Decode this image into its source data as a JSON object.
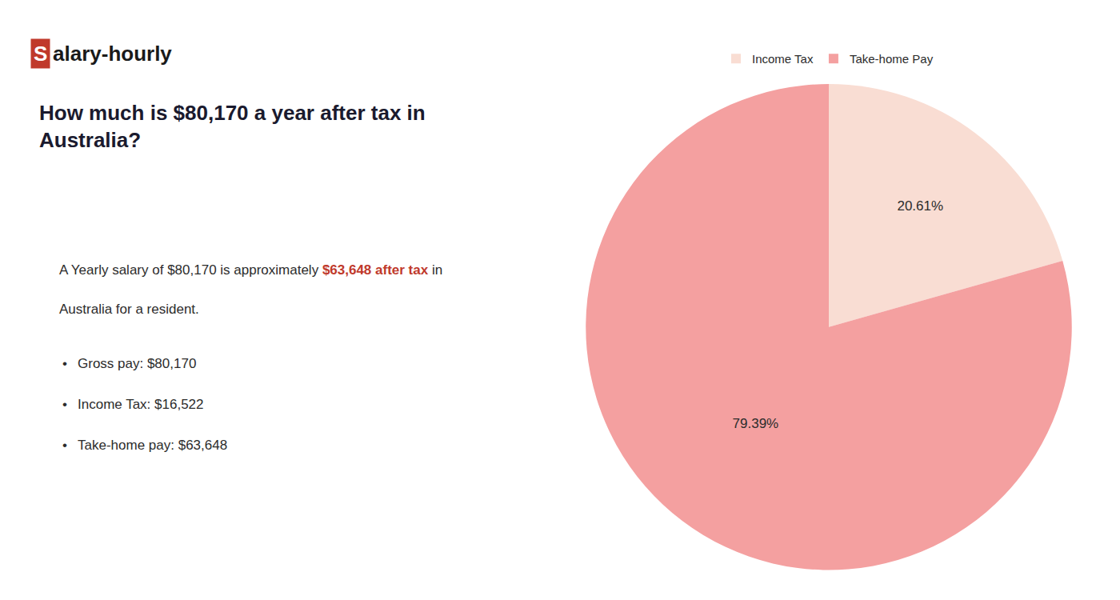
{
  "chart_data": {
    "type": "pie",
    "title": "How much is $80,170 a year after tax in\nAustralia?",
    "categories": [
      "Income Tax",
      "Take-home Pay"
    ],
    "values": [
      20.61,
      79.39
    ],
    "value_labels": [
      "20.61%",
      "79.39%"
    ],
    "colors": [
      "#f9ddd3",
      "#f4a0a0"
    ],
    "data_labels": true,
    "legend": "top",
    "annotations": [
      [
        {
          "text": "S",
          "color": "#c0392b"
        },
        "alary-hourly"
      ],
      [
        "A Yearly salary of $80,170 is approximately ",
        {
          "text": "$63,648 after tax",
          "color": "#c0392b"
        },
        " in"
      ],
      [
        "Australia for a resident."
      ],
      [
        "•",
        "Gross pay: $80,170"
      ],
      [
        "•",
        "Income Tax: $16,522"
      ],
      [
        "•",
        "Take-home pay: $63,648"
      ]
    ]
  }
}
